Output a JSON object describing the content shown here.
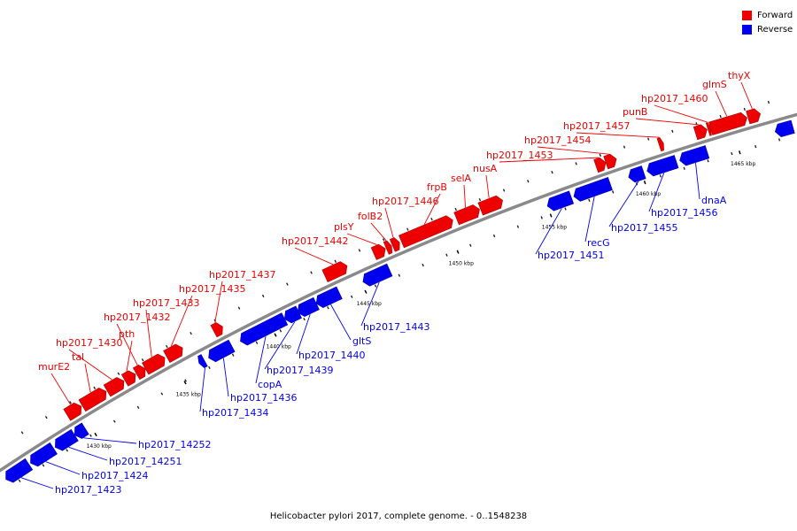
{
  "legend": {
    "forward_label": "Forward",
    "reverse_label": "Reverse",
    "forward_color": "#ee0000",
    "reverse_color": "#0000ee"
  },
  "caption": "Helicobacter pylori 2017, complete genome. - 0..1548238",
  "colors": {
    "backbone": "#888888",
    "forward": "#ee0000",
    "reverse": "#0000ee",
    "tick": "#000000"
  },
  "scale_labels": [
    "1430 kbp",
    "1435 kbp",
    "1440 kbp",
    "1445 kbp",
    "1450 kbp",
    "1455 kbp",
    "1460 kbp",
    "1465 kbp"
  ],
  "genes": [
    {
      "label": "hp2017_1423",
      "strand": "reverse"
    },
    {
      "label": "hp2017_1424",
      "strand": "reverse"
    },
    {
      "label": "hp2017_14251",
      "strand": "reverse"
    },
    {
      "label": "hp2017_14252",
      "strand": "reverse"
    },
    {
      "label": "murE2",
      "strand": "forward"
    },
    {
      "label": "tal",
      "strand": "forward"
    },
    {
      "label": "hp2017_1430",
      "strand": "forward"
    },
    {
      "label": "pth",
      "strand": "forward"
    },
    {
      "label": "hp2017_1432",
      "strand": "forward"
    },
    {
      "label": "hp2017_1433",
      "strand": "forward"
    },
    {
      "label": "hp2017_1434",
      "strand": "reverse"
    },
    {
      "label": "hp2017_1435",
      "strand": "forward"
    },
    {
      "label": "hp2017_1436",
      "strand": "reverse"
    },
    {
      "label": "hp2017_1437",
      "strand": "forward"
    },
    {
      "label": "copA",
      "strand": "reverse"
    },
    {
      "label": "hp2017_1439",
      "strand": "reverse"
    },
    {
      "label": "hp2017_1440",
      "strand": "reverse"
    },
    {
      "label": "gltS",
      "strand": "reverse"
    },
    {
      "label": "hp2017_1442",
      "strand": "forward"
    },
    {
      "label": "hp2017_1443",
      "strand": "reverse"
    },
    {
      "label": "plsY",
      "strand": "forward"
    },
    {
      "label": "folB2",
      "strand": "forward"
    },
    {
      "label": "hp2017_1446",
      "strand": "forward"
    },
    {
      "label": "frpB",
      "strand": "forward"
    },
    {
      "label": "selA",
      "strand": "forward"
    },
    {
      "label": "nusA",
      "strand": "forward"
    },
    {
      "label": "hp2017_1451",
      "strand": "reverse"
    },
    {
      "label": "recG",
      "strand": "reverse"
    },
    {
      "label": "hp2017_1453",
      "strand": "forward"
    },
    {
      "label": "hp2017_1454",
      "strand": "forward"
    },
    {
      "label": "hp2017_1455",
      "strand": "reverse"
    },
    {
      "label": "hp2017_1456",
      "strand": "reverse"
    },
    {
      "label": "dnaA",
      "strand": "reverse"
    },
    {
      "label": "hp2017_1457",
      "strand": "forward"
    },
    {
      "label": "punB",
      "strand": "forward"
    },
    {
      "label": "hp2017_1460",
      "strand": "forward"
    },
    {
      "label": "glmS",
      "strand": "forward"
    },
    {
      "label": "thyX",
      "strand": "forward"
    }
  ]
}
